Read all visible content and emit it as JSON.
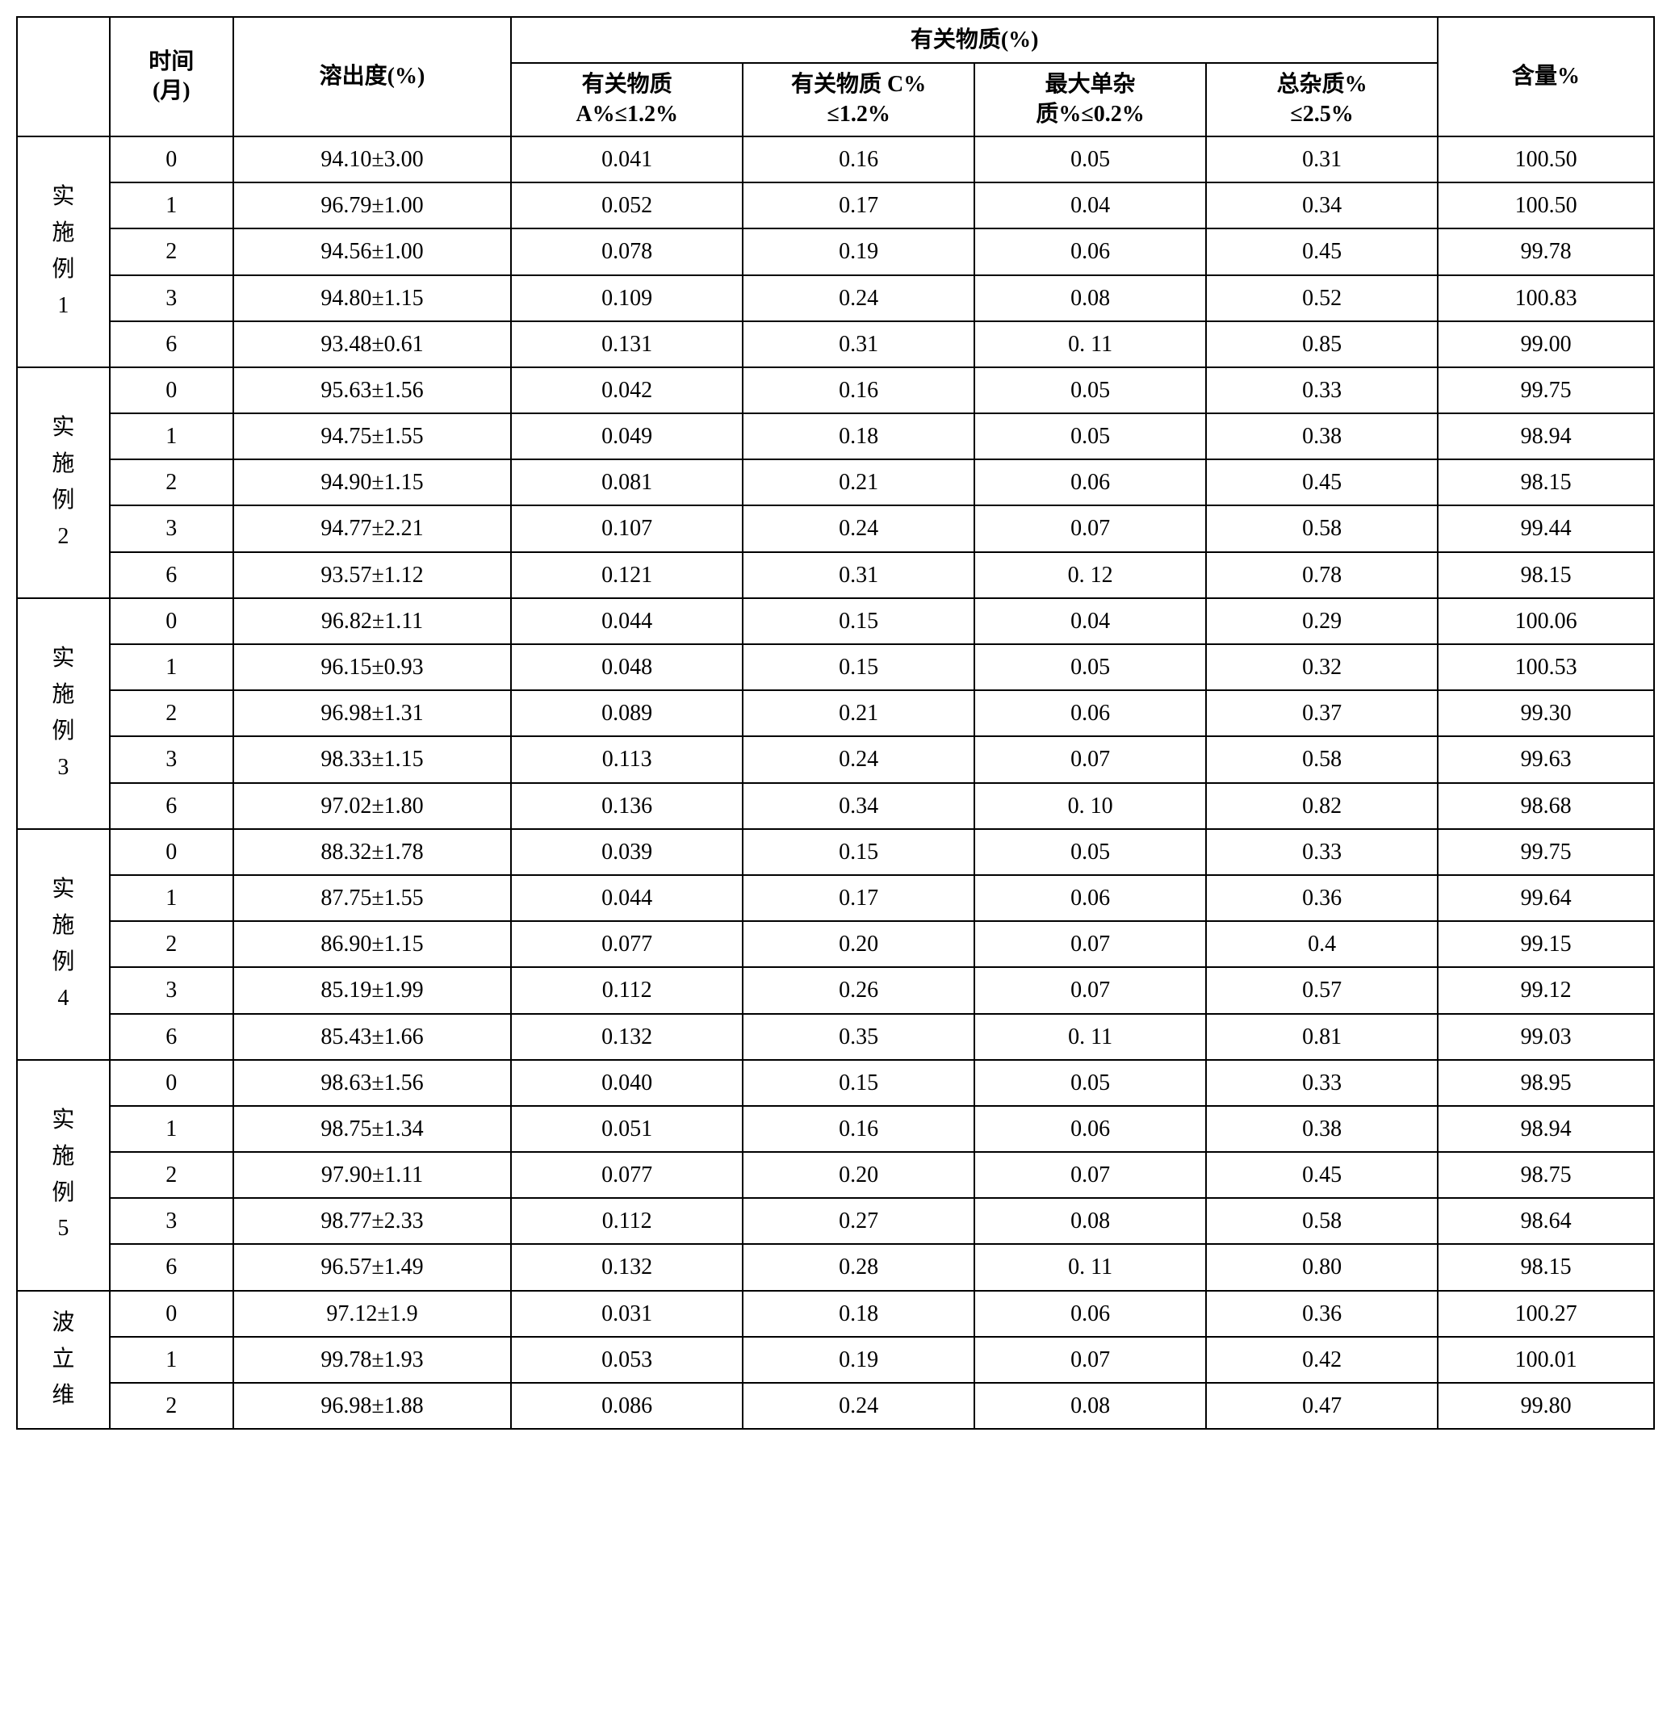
{
  "table": {
    "headers": {
      "group_label": "",
      "time_label": "时间(月)",
      "dissolution_label": "溶出度(%)",
      "impurity_group_label": "有关物质(%)",
      "impurity_a_label": "有关物质A%≤1.2%",
      "impurity_c_label": "有关物质 C%≤1.2%",
      "max_single_label": "最大单杂质%≤0.2%",
      "total_impurity_label": "总杂质%≤2.5%",
      "content_label": "含量%"
    },
    "groups": [
      {
        "name": "实施例1",
        "chars": [
          "实",
          "施",
          "例",
          "1"
        ],
        "rows": [
          {
            "time": "0",
            "dissolution": "94.10±3.00",
            "imp_a": "0.041",
            "imp_c": "0.16",
            "max_single": "0.05",
            "total": "0.31",
            "content": "100.50"
          },
          {
            "time": "1",
            "dissolution": "96.79±1.00",
            "imp_a": "0.052",
            "imp_c": "0.17",
            "max_single": "0.04",
            "total": "0.34",
            "content": "100.50"
          },
          {
            "time": "2",
            "dissolution": "94.56±1.00",
            "imp_a": "0.078",
            "imp_c": "0.19",
            "max_single": "0.06",
            "total": "0.45",
            "content": "99.78"
          },
          {
            "time": "3",
            "dissolution": "94.80±1.15",
            "imp_a": "0.109",
            "imp_c": "0.24",
            "max_single": "0.08",
            "total": "0.52",
            "content": "100.83"
          },
          {
            "time": "6",
            "dissolution": "93.48±0.61",
            "imp_a": "0.131",
            "imp_c": "0.31",
            "max_single": "0. 11",
            "total": "0.85",
            "content": "99.00"
          }
        ]
      },
      {
        "name": "实施例2",
        "chars": [
          "实",
          "施",
          "例",
          "2"
        ],
        "rows": [
          {
            "time": "0",
            "dissolution": "95.63±1.56",
            "imp_a": "0.042",
            "imp_c": "0.16",
            "max_single": "0.05",
            "total": "0.33",
            "content": "99.75"
          },
          {
            "time": "1",
            "dissolution": "94.75±1.55",
            "imp_a": "0.049",
            "imp_c": "0.18",
            "max_single": "0.05",
            "total": "0.38",
            "content": "98.94"
          },
          {
            "time": "2",
            "dissolution": "94.90±1.15",
            "imp_a": "0.081",
            "imp_c": "0.21",
            "max_single": "0.06",
            "total": "0.45",
            "content": "98.15"
          },
          {
            "time": "3",
            "dissolution": "94.77±2.21",
            "imp_a": "0.107",
            "imp_c": "0.24",
            "max_single": "0.07",
            "total": "0.58",
            "content": "99.44"
          },
          {
            "time": "6",
            "dissolution": "93.57±1.12",
            "imp_a": "0.121",
            "imp_c": "0.31",
            "max_single": "0. 12",
            "total": "0.78",
            "content": "98.15"
          }
        ]
      },
      {
        "name": "实施例3",
        "chars": [
          "实",
          "施",
          "例",
          "3"
        ],
        "rows": [
          {
            "time": "0",
            "dissolution": "96.82±1.11",
            "imp_a": "0.044",
            "imp_c": "0.15",
            "max_single": "0.04",
            "total": "0.29",
            "content": "100.06"
          },
          {
            "time": "1",
            "dissolution": "96.15±0.93",
            "imp_a": "0.048",
            "imp_c": "0.15",
            "max_single": "0.05",
            "total": "0.32",
            "content": "100.53"
          },
          {
            "time": "2",
            "dissolution": "96.98±1.31",
            "imp_a": "0.089",
            "imp_c": "0.21",
            "max_single": "0.06",
            "total": "0.37",
            "content": "99.30"
          },
          {
            "time": "3",
            "dissolution": "98.33±1.15",
            "imp_a": "0.113",
            "imp_c": "0.24",
            "max_single": "0.07",
            "total": "0.58",
            "content": "99.63"
          },
          {
            "time": "6",
            "dissolution": "97.02±1.80",
            "imp_a": "0.136",
            "imp_c": "0.34",
            "max_single": "0. 10",
            "total": "0.82",
            "content": "98.68"
          }
        ]
      },
      {
        "name": "实施例4",
        "chars": [
          "实",
          "施",
          "例",
          "4"
        ],
        "rows": [
          {
            "time": "0",
            "dissolution": "88.32±1.78",
            "imp_a": "0.039",
            "imp_c": "0.15",
            "max_single": "0.05",
            "total": "0.33",
            "content": "99.75"
          },
          {
            "time": "1",
            "dissolution": "87.75±1.55",
            "imp_a": "0.044",
            "imp_c": "0.17",
            "max_single": "0.06",
            "total": "0.36",
            "content": "99.64"
          },
          {
            "time": "2",
            "dissolution": "86.90±1.15",
            "imp_a": "0.077",
            "imp_c": "0.20",
            "max_single": "0.07",
            "total": "0.4",
            "content": "99.15"
          },
          {
            "time": "3",
            "dissolution": "85.19±1.99",
            "imp_a": "0.112",
            "imp_c": "0.26",
            "max_single": "0.07",
            "total": "0.57",
            "content": "99.12"
          },
          {
            "time": "6",
            "dissolution": "85.43±1.66",
            "imp_a": "0.132",
            "imp_c": "0.35",
            "max_single": "0. 11",
            "total": "0.81",
            "content": "99.03"
          }
        ]
      },
      {
        "name": "实施例5",
        "chars": [
          "实",
          "施",
          "例",
          "5"
        ],
        "rows": [
          {
            "time": "0",
            "dissolution": "98.63±1.56",
            "imp_a": "0.040",
            "imp_c": "0.15",
            "max_single": "0.05",
            "total": "0.33",
            "content": "98.95"
          },
          {
            "time": "1",
            "dissolution": "98.75±1.34",
            "imp_a": "0.051",
            "imp_c": "0.16",
            "max_single": "0.06",
            "total": "0.38",
            "content": "98.94"
          },
          {
            "time": "2",
            "dissolution": "97.90±1.11",
            "imp_a": "0.077",
            "imp_c": "0.20",
            "max_single": "0.07",
            "total": "0.45",
            "content": "98.75"
          },
          {
            "time": "3",
            "dissolution": "98.77±2.33",
            "imp_a": "0.112",
            "imp_c": "0.27",
            "max_single": "0.08",
            "total": "0.58",
            "content": "98.64"
          },
          {
            "time": "6",
            "dissolution": "96.57±1.49",
            "imp_a": "0.132",
            "imp_c": "0.28",
            "max_single": "0. 11",
            "total": "0.80",
            "content": "98.15"
          }
        ]
      },
      {
        "name": "波立维",
        "chars": [
          "波",
          "立",
          "维"
        ],
        "rows": [
          {
            "time": "0",
            "dissolution": "97.12±1.9",
            "imp_a": "0.031",
            "imp_c": "0.18",
            "max_single": "0.06",
            "total": "0.36",
            "content": "100.27"
          },
          {
            "time": "1",
            "dissolution": "99.78±1.93",
            "imp_a": "0.053",
            "imp_c": "0.19",
            "max_single": "0.07",
            "total": "0.42",
            "content": "100.01"
          },
          {
            "time": "2",
            "dissolution": "96.98±1.88",
            "imp_a": "0.086",
            "imp_c": "0.24",
            "max_single": "0.08",
            "total": "0.47",
            "content": "99.80"
          }
        ]
      }
    ],
    "styling": {
      "border_color": "#000000",
      "border_width": 2,
      "background_color": "#ffffff",
      "text_color": "#000000",
      "font_family": "SimSun",
      "font_size": 28,
      "cell_align": "center",
      "column_widths": {
        "group": 60,
        "time": 80,
        "dissolution": 180,
        "impurity": 150,
        "content": 140
      }
    }
  }
}
